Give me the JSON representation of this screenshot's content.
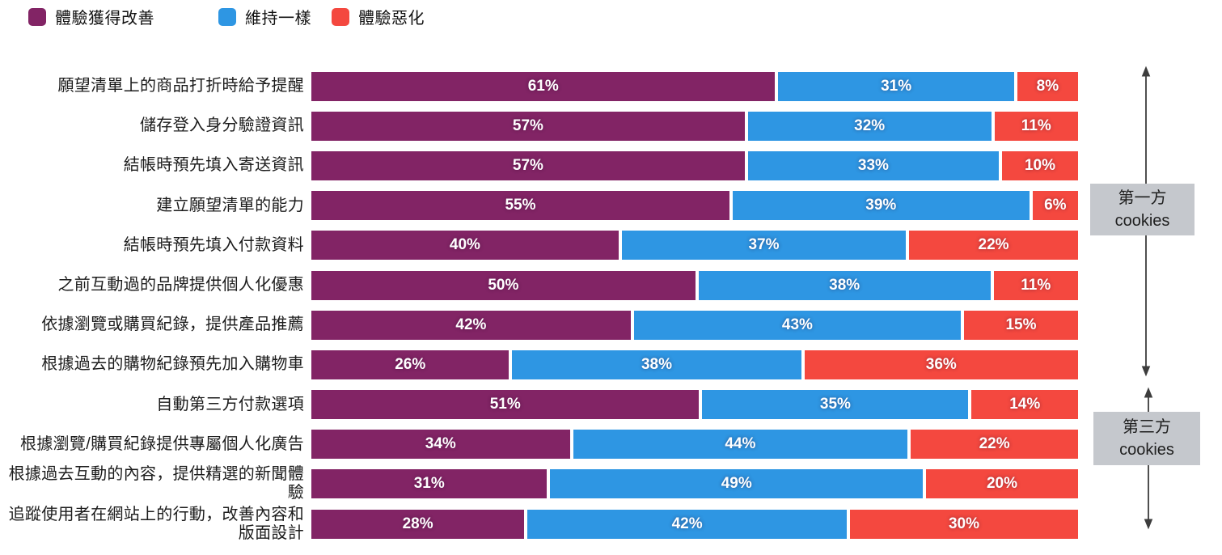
{
  "legend": {
    "items": [
      {
        "label": "體驗獲得改善",
        "key": "improve",
        "color": "#822465"
      },
      {
        "label": "維持一樣",
        "key": "same",
        "color": "#2E96E3"
      },
      {
        "label": "體驗惡化",
        "key": "worse",
        "color": "#F4483F"
      }
    ]
  },
  "chart_data": {
    "type": "bar",
    "orientation": "horizontal",
    "stacked": true,
    "value_suffix": "%",
    "axis_range": [
      0,
      100
    ],
    "categories": [
      "願望清單上的商品打折時給予提醒",
      "儲存登入身分驗證資訊",
      "結帳時預先填入寄送資訊",
      "建立願望清單的能力",
      "結帳時預先填入付款資料",
      "之前互動過的品牌提供個人化優惠",
      "依據瀏覽或購買紀錄，提供產品推薦",
      "根據過去的購物紀錄預先加入購物車",
      "自動第三方付款選項",
      "根據瀏覽/購買紀錄提供專屬個人化廣告",
      "根據過去互動的內容，提供精選的新聞體驗",
      "追蹤使用者在網站上的行動，改善內容和版面設計"
    ],
    "series": [
      {
        "name": "體驗獲得改善",
        "key": "improve",
        "color": "#822465",
        "values": [
          61,
          57,
          57,
          55,
          40,
          50,
          42,
          26,
          51,
          34,
          31,
          28
        ]
      },
      {
        "name": "維持一樣",
        "key": "same",
        "color": "#2E96E3",
        "values": [
          31,
          32,
          33,
          39,
          37,
          38,
          43,
          38,
          35,
          44,
          49,
          42
        ]
      },
      {
        "name": "體驗惡化",
        "key": "worse",
        "color": "#F4483F",
        "values": [
          8,
          11,
          10,
          6,
          22,
          11,
          15,
          36,
          14,
          22,
          20,
          30
        ]
      }
    ]
  },
  "annotations": {
    "first_party": {
      "line1": "第一方",
      "line2": "cookies",
      "category_rows": "1-8"
    },
    "third_party": {
      "line1": "第三方",
      "line2": "cookies",
      "category_rows": "9-12"
    }
  }
}
